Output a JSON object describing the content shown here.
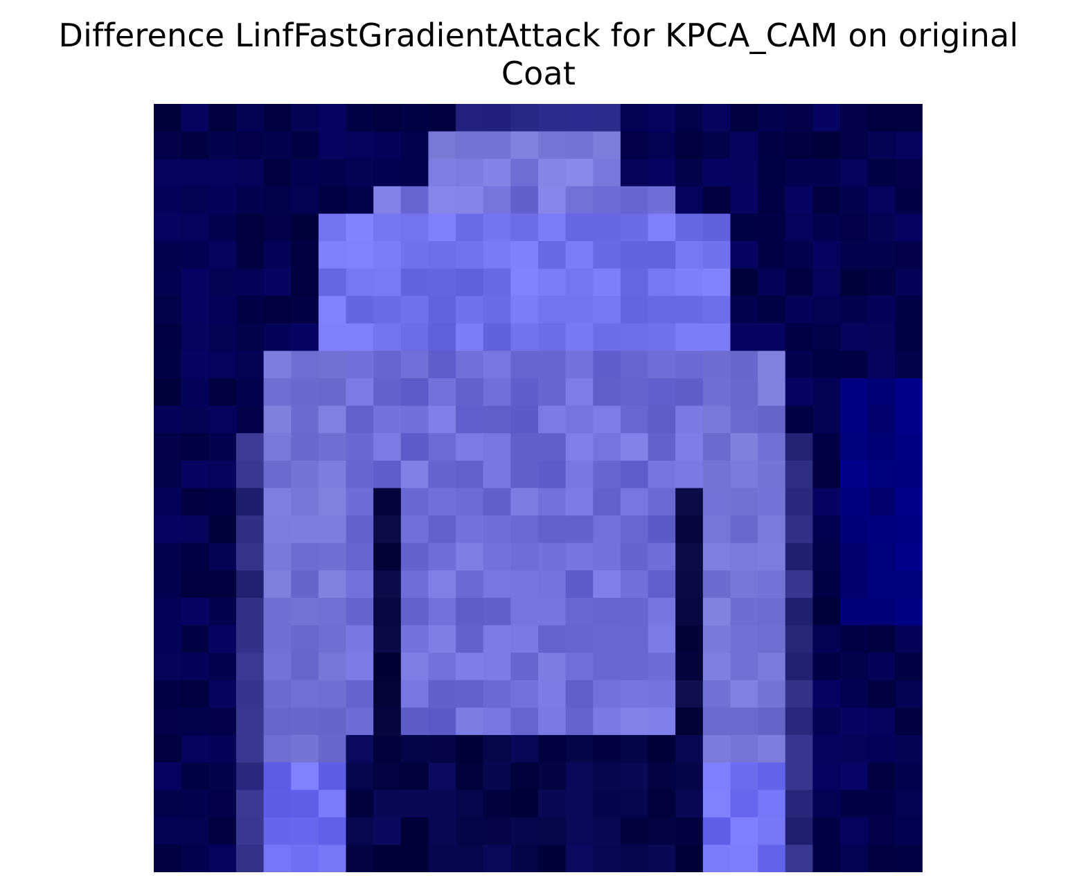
{
  "figure": {
    "title_line1": "Difference LinfFastGradientAttack for KPCA_CAM on original",
    "title_line2": "Coat"
  },
  "image": {
    "grid_size": 28,
    "background_color": "#00003a",
    "colors": {
      "base": "#000040",
      "garment": "#7474d6",
      "mid": "#5050b0",
      "dark_gap": "#000028",
      "bright": "#7f80ff"
    }
  }
}
